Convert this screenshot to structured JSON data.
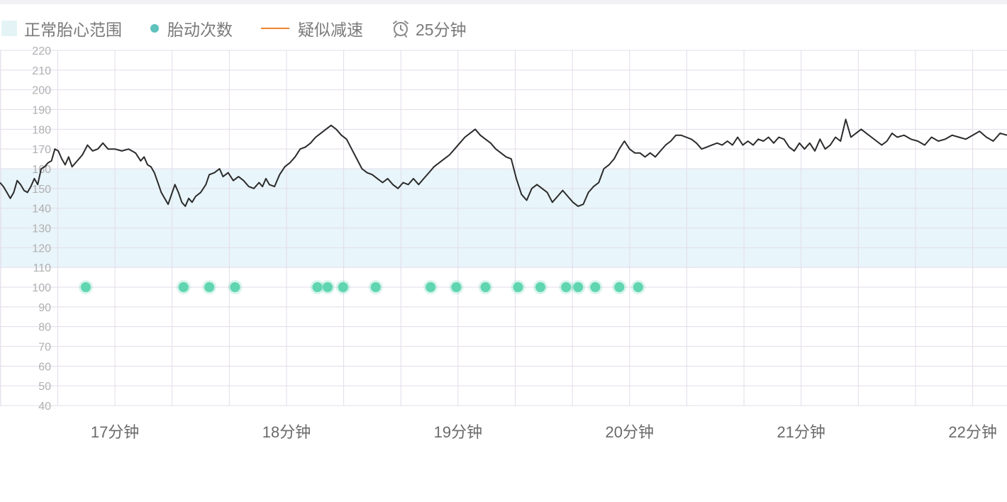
{
  "legend": {
    "normal_range": "正常胎心范围",
    "fetal_movement": "胎动次数",
    "suspected_decel": "疑似减速",
    "timer": "25分钟"
  },
  "colors": {
    "range_fill": "#e8f5fa",
    "hr_line": "#2b2b2b",
    "movement_dot": "#5fd5b0",
    "decel_line": "#ee8430",
    "grid": "#e3dcea"
  },
  "chart_data": {
    "type": "line",
    "x_unit": "minutes",
    "xlim": [
      16.33,
      22.2
    ],
    "ylim": [
      40,
      220
    ],
    "y_step": 10,
    "grid": true,
    "legend_position": "top-left",
    "normal_range": [
      110,
      160
    ],
    "x_ticks": [
      {
        "value": 17,
        "label": "17分钟"
      },
      {
        "value": 18,
        "label": "18分钟"
      },
      {
        "value": 19,
        "label": "19分钟"
      },
      {
        "value": 20,
        "label": "20分钟"
      },
      {
        "value": 21,
        "label": "21分钟"
      },
      {
        "value": 22,
        "label": "22分钟"
      }
    ],
    "y_ticks": [
      "40",
      "50",
      "60",
      "70",
      "80",
      "90",
      "100",
      "110",
      "120",
      "130",
      "140",
      "150",
      "160",
      "170",
      "180",
      "190",
      "200",
      "210",
      "220"
    ],
    "series": [
      {
        "kind": "line",
        "points": [
          [
            16.33,
            153
          ],
          [
            16.35,
            151
          ],
          [
            16.37,
            148
          ],
          [
            16.39,
            145
          ],
          [
            16.41,
            148
          ],
          [
            16.43,
            154
          ],
          [
            16.45,
            152
          ],
          [
            16.47,
            149
          ],
          [
            16.49,
            148
          ],
          [
            16.51,
            151
          ],
          [
            16.53,
            155
          ],
          [
            16.55,
            152
          ],
          [
            16.57,
            160
          ],
          [
            16.59,
            161
          ],
          [
            16.61,
            163
          ],
          [
            16.63,
            164
          ],
          [
            16.65,
            170
          ],
          [
            16.67,
            169
          ],
          [
            16.69,
            165
          ],
          [
            16.71,
            162
          ],
          [
            16.73,
            166
          ],
          [
            16.75,
            161
          ],
          [
            16.78,
            164
          ],
          [
            16.81,
            167
          ],
          [
            16.84,
            172
          ],
          [
            16.87,
            169
          ],
          [
            16.9,
            170
          ],
          [
            16.93,
            173
          ],
          [
            16.96,
            170
          ],
          [
            17.0,
            170
          ],
          [
            17.04,
            169
          ],
          [
            17.08,
            170
          ],
          [
            17.12,
            168
          ],
          [
            17.15,
            164
          ],
          [
            17.17,
            166
          ],
          [
            17.19,
            162
          ],
          [
            17.21,
            161
          ],
          [
            17.23,
            158
          ],
          [
            17.25,
            153
          ],
          [
            17.27,
            148
          ],
          [
            17.29,
            145
          ],
          [
            17.31,
            142
          ],
          [
            17.33,
            147
          ],
          [
            17.35,
            152
          ],
          [
            17.37,
            148
          ],
          [
            17.39,
            143
          ],
          [
            17.41,
            141
          ],
          [
            17.43,
            145
          ],
          [
            17.45,
            143
          ],
          [
            17.47,
            146
          ],
          [
            17.5,
            148
          ],
          [
            17.53,
            152
          ],
          [
            17.55,
            157
          ],
          [
            17.58,
            158
          ],
          [
            17.61,
            160
          ],
          [
            17.63,
            156
          ],
          [
            17.66,
            158
          ],
          [
            17.69,
            154
          ],
          [
            17.72,
            156
          ],
          [
            17.75,
            154
          ],
          [
            17.78,
            151
          ],
          [
            17.81,
            150
          ],
          [
            17.84,
            153
          ],
          [
            17.86,
            151
          ],
          [
            17.88,
            155
          ],
          [
            17.9,
            152
          ],
          [
            17.93,
            151
          ],
          [
            17.96,
            157
          ],
          [
            17.99,
            161
          ],
          [
            18.02,
            163
          ],
          [
            18.05,
            166
          ],
          [
            18.08,
            170
          ],
          [
            18.11,
            171
          ],
          [
            18.14,
            173
          ],
          [
            18.17,
            176
          ],
          [
            18.2,
            178
          ],
          [
            18.23,
            180
          ],
          [
            18.26,
            182
          ],
          [
            18.29,
            180
          ],
          [
            18.32,
            177
          ],
          [
            18.35,
            175
          ],
          [
            18.38,
            170
          ],
          [
            18.41,
            165
          ],
          [
            18.44,
            160
          ],
          [
            18.47,
            158
          ],
          [
            18.5,
            157
          ],
          [
            18.53,
            155
          ],
          [
            18.56,
            153
          ],
          [
            18.59,
            155
          ],
          [
            18.62,
            152
          ],
          [
            18.65,
            150
          ],
          [
            18.68,
            153
          ],
          [
            18.71,
            152
          ],
          [
            18.74,
            155
          ],
          [
            18.77,
            152
          ],
          [
            18.8,
            155
          ],
          [
            18.83,
            158
          ],
          [
            18.86,
            161
          ],
          [
            18.89,
            163
          ],
          [
            18.92,
            165
          ],
          [
            18.95,
            167
          ],
          [
            18.98,
            170
          ],
          [
            19.01,
            173
          ],
          [
            19.04,
            176
          ],
          [
            19.07,
            178
          ],
          [
            19.1,
            180
          ],
          [
            19.13,
            177
          ],
          [
            19.16,
            175
          ],
          [
            19.19,
            173
          ],
          [
            19.22,
            170
          ],
          [
            19.25,
            168
          ],
          [
            19.28,
            166
          ],
          [
            19.31,
            165
          ],
          [
            19.34,
            155
          ],
          [
            19.37,
            147
          ],
          [
            19.4,
            144
          ],
          [
            19.43,
            150
          ],
          [
            19.46,
            152
          ],
          [
            19.49,
            150
          ],
          [
            19.52,
            148
          ],
          [
            19.55,
            143
          ],
          [
            19.58,
            146
          ],
          [
            19.61,
            149
          ],
          [
            19.64,
            146
          ],
          [
            19.67,
            143
          ],
          [
            19.7,
            141
          ],
          [
            19.73,
            142
          ],
          [
            19.76,
            148
          ],
          [
            19.79,
            151
          ],
          [
            19.82,
            153
          ],
          [
            19.85,
            160
          ],
          [
            19.88,
            162
          ],
          [
            19.91,
            165
          ],
          [
            19.94,
            170
          ],
          [
            19.97,
            174
          ],
          [
            20.0,
            170
          ],
          [
            20.03,
            168
          ],
          [
            20.06,
            168
          ],
          [
            20.09,
            166
          ],
          [
            20.12,
            168
          ],
          [
            20.15,
            166
          ],
          [
            20.18,
            169
          ],
          [
            20.21,
            172
          ],
          [
            20.24,
            174
          ],
          [
            20.27,
            177
          ],
          [
            20.3,
            177
          ],
          [
            20.33,
            176
          ],
          [
            20.36,
            175
          ],
          [
            20.39,
            173
          ],
          [
            20.42,
            170
          ],
          [
            20.45,
            171
          ],
          [
            20.48,
            172
          ],
          [
            20.51,
            173
          ],
          [
            20.54,
            172
          ],
          [
            20.57,
            174
          ],
          [
            20.6,
            172
          ],
          [
            20.63,
            176
          ],
          [
            20.66,
            172
          ],
          [
            20.69,
            174
          ],
          [
            20.72,
            172
          ],
          [
            20.75,
            175
          ],
          [
            20.78,
            174
          ],
          [
            20.81,
            176
          ],
          [
            20.84,
            173
          ],
          [
            20.87,
            176
          ],
          [
            20.9,
            175
          ],
          [
            20.93,
            171
          ],
          [
            20.96,
            169
          ],
          [
            20.99,
            173
          ],
          [
            21.02,
            170
          ],
          [
            21.05,
            173
          ],
          [
            21.08,
            169
          ],
          [
            21.11,
            175
          ],
          [
            21.14,
            170
          ],
          [
            21.17,
            172
          ],
          [
            21.2,
            176
          ],
          [
            21.23,
            174
          ],
          [
            21.26,
            185
          ],
          [
            21.29,
            176
          ],
          [
            21.32,
            178
          ],
          [
            21.35,
            180
          ],
          [
            21.38,
            178
          ],
          [
            21.41,
            176
          ],
          [
            21.44,
            174
          ],
          [
            21.47,
            172
          ],
          [
            21.5,
            174
          ],
          [
            21.53,
            178
          ],
          [
            21.56,
            176
          ],
          [
            21.6,
            177
          ],
          [
            21.64,
            175
          ],
          [
            21.68,
            174
          ],
          [
            21.72,
            172
          ],
          [
            21.76,
            176
          ],
          [
            21.8,
            174
          ],
          [
            21.84,
            175
          ],
          [
            21.88,
            177
          ],
          [
            21.92,
            176
          ],
          [
            21.96,
            175
          ],
          [
            22.0,
            177
          ],
          [
            22.04,
            179
          ],
          [
            22.08,
            176
          ],
          [
            22.12,
            174
          ],
          [
            22.16,
            178
          ],
          [
            22.2,
            177
          ]
        ]
      },
      {
        "kind": "points",
        "y": 100,
        "x": [
          16.83,
          17.4,
          17.55,
          17.7,
          18.18,
          18.24,
          18.33,
          18.52,
          18.84,
          18.99,
          19.16,
          19.35,
          19.48,
          19.63,
          19.7,
          19.8,
          19.94,
          20.05
        ]
      }
    ]
  }
}
